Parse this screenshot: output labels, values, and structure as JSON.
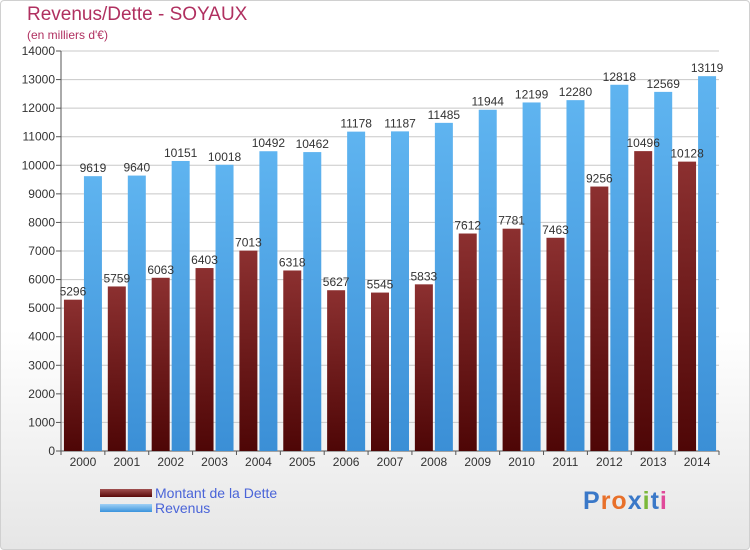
{
  "header": {
    "title": "Revenus/Dette - SOYAUX",
    "subtitle": "(en milliers d'€)"
  },
  "colors": {
    "dette": "#6e1a1a",
    "revenus": "#4aa3e8"
  },
  "chart_data": {
    "type": "bar",
    "title": "Revenus/Dette - SOYAUX",
    "subtitle": "(en milliers d'€)",
    "xlabel": "",
    "ylabel": "",
    "ylim": [
      0,
      14000
    ],
    "yticks": [
      0,
      1000,
      2000,
      3000,
      4000,
      5000,
      6000,
      7000,
      8000,
      9000,
      10000,
      11000,
      12000,
      13000,
      14000
    ],
    "grid": true,
    "legend": "bottom-left",
    "categories": [
      "2000",
      "2001",
      "2002",
      "2003",
      "2004",
      "2005",
      "2006",
      "2007",
      "2008",
      "2009",
      "2010",
      "2011",
      "2012",
      "2013",
      "2014"
    ],
    "series": [
      {
        "name": "Montant de la Dette",
        "values": [
          5296,
          5759,
          6063,
          6403,
          7013,
          6318,
          5627,
          5545,
          5833,
          7612,
          7781,
          7463,
          9256,
          10496,
          10128
        ],
        "labels": [
          "5296",
          "5759",
          "6063",
          "6403",
          "7013",
          "6318",
          "5627",
          "5545",
          "5833",
          "7612",
          "7781",
          "7463",
          "9256",
          "10496",
          "10128"
        ]
      },
      {
        "name": "Revenus",
        "values": [
          9619,
          9640,
          10151,
          10018,
          10492,
          10462,
          11178,
          11187,
          11485,
          11944,
          12199,
          12280,
          12818,
          12569,
          13119
        ],
        "labels": [
          "9619",
          "9640",
          "10151",
          "10018",
          "10492",
          "10462",
          "11178",
          "11187",
          "11485",
          "11944",
          "12199",
          "12280",
          "12818",
          "12569",
          "13119"
        ]
      }
    ]
  },
  "legend": {
    "items": [
      {
        "label": "Montant de la Dette"
      },
      {
        "label": "Revenus"
      }
    ]
  },
  "logo": {
    "text": "Proxiti",
    "letter_colors": [
      "#3a78c8",
      "#e8702a",
      "#e8702a",
      "#3a78c8",
      "#7ab83a",
      "#3a78c8",
      "#e04a9a"
    ]
  }
}
